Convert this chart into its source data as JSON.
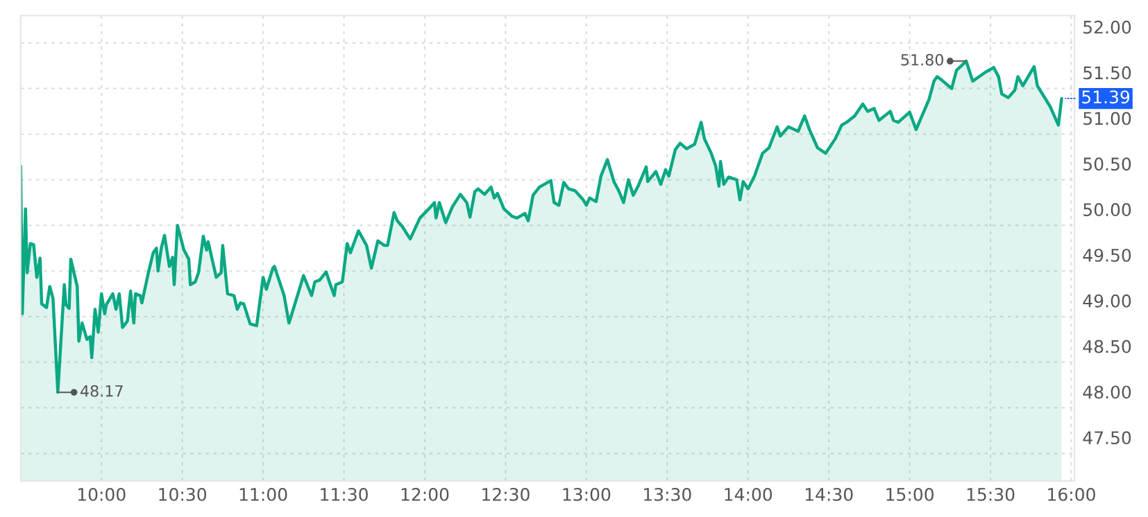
{
  "chart_data": {
    "type": "area",
    "x": [
      9.5,
      9.51,
      9.53,
      9.54,
      9.56,
      9.58,
      9.6,
      9.62,
      9.63,
      9.66,
      9.68,
      9.7,
      9.73,
      9.77,
      9.78,
      9.8,
      9.81,
      9.85,
      9.86,
      9.88,
      9.91,
      9.93,
      9.94,
      9.96,
      9.98,
      10.0,
      10.02,
      10.03,
      10.07,
      10.09,
      10.11,
      10.13,
      10.16,
      10.18,
      10.2,
      10.21,
      10.24,
      10.25,
      10.29,
      10.32,
      10.34,
      10.35,
      10.37,
      10.39,
      10.42,
      10.44,
      10.45,
      10.47,
      10.51,
      10.54,
      10.55,
      10.58,
      10.6,
      10.63,
      10.65,
      10.66,
      10.71,
      10.74,
      10.75,
      10.78,
      10.82,
      10.84,
      10.86,
      10.88,
      10.92,
      10.96,
      11.0,
      11.02,
      11.06,
      11.07,
      11.13,
      11.16,
      11.19,
      11.25,
      11.3,
      11.32,
      11.35,
      11.39,
      11.41,
      11.44,
      11.45,
      11.49,
      11.52,
      11.54,
      11.59,
      11.64,
      11.67,
      11.71,
      11.75,
      11.77,
      11.81,
      11.83,
      11.86,
      11.91,
      11.97,
      12.03,
      12.06,
      12.07,
      12.09,
      12.13,
      12.17,
      12.22,
      12.26,
      12.28,
      12.31,
      12.33,
      12.37,
      12.41,
      12.43,
      12.45,
      12.49,
      12.54,
      12.57,
      12.62,
      12.64,
      12.67,
      12.71,
      12.78,
      12.8,
      12.83,
      12.86,
      12.89,
      12.93,
      12.98,
      13.0,
      13.02,
      13.06,
      13.09,
      13.13,
      13.17,
      13.2,
      13.23,
      13.26,
      13.29,
      13.32,
      13.37,
      13.38,
      13.43,
      13.46,
      13.49,
      13.51,
      13.55,
      13.58,
      13.62,
      13.67,
      13.71,
      13.73,
      13.77,
      13.8,
      13.82,
      13.83,
      13.85,
      13.88,
      13.93,
      13.95,
      13.97,
      14.0,
      14.04,
      14.09,
      14.13,
      14.18,
      14.2,
      14.25,
      14.31,
      14.35,
      14.38,
      14.43,
      14.48,
      14.54,
      14.58,
      14.61,
      14.66,
      14.71,
      14.74,
      14.78,
      14.81,
      14.88,
      14.9,
      14.93,
      15.0,
      15.04,
      15.12,
      15.15,
      15.17,
      15.2,
      15.26,
      15.29,
      15.32,
      15.35,
      15.39,
      15.47,
      15.52,
      15.55,
      15.57,
      15.61,
      15.65,
      15.67,
      15.7,
      15.77,
      15.79,
      15.87,
      15.92,
      15.94
    ],
    "series": [
      {
        "color": "#0aa883",
        "values": [
          50.65,
          49.03,
          50.18,
          49.48,
          49.8,
          49.79,
          49.43,
          49.64,
          49.14,
          49.1,
          49.33,
          49.2,
          48.17,
          49.35,
          49.13,
          49.09,
          49.63,
          49.33,
          48.73,
          48.93,
          48.75,
          48.78,
          48.55,
          49.08,
          48.83,
          49.25,
          49.03,
          49.13,
          49.25,
          49.08,
          49.25,
          48.88,
          48.95,
          49.28,
          48.93,
          49.25,
          49.23,
          49.15,
          49.48,
          49.7,
          49.75,
          49.5,
          49.75,
          49.89,
          49.55,
          49.65,
          49.35,
          50.0,
          49.73,
          49.63,
          49.35,
          49.38,
          49.48,
          49.88,
          49.73,
          49.82,
          49.43,
          49.48,
          49.78,
          49.25,
          49.23,
          49.08,
          49.15,
          49.14,
          48.92,
          48.9,
          49.43,
          49.3,
          49.53,
          49.55,
          49.23,
          48.93,
          49.1,
          49.45,
          49.23,
          49.38,
          49.4,
          49.49,
          49.38,
          49.23,
          49.35,
          49.38,
          49.8,
          49.7,
          49.94,
          49.78,
          49.53,
          49.83,
          49.78,
          49.78,
          50.14,
          50.05,
          49.99,
          49.85,
          50.08,
          50.19,
          50.25,
          50.08,
          50.25,
          50.03,
          50.2,
          50.34,
          50.25,
          50.09,
          50.37,
          50.4,
          50.34,
          50.42,
          50.3,
          50.35,
          50.18,
          50.1,
          50.08,
          50.13,
          50.05,
          50.33,
          50.42,
          50.49,
          50.25,
          50.22,
          50.47,
          50.4,
          50.38,
          50.28,
          50.22,
          50.3,
          50.26,
          50.54,
          50.72,
          50.48,
          50.38,
          50.25,
          50.5,
          50.33,
          50.43,
          50.64,
          50.48,
          50.59,
          50.45,
          50.61,
          50.54,
          50.83,
          50.9,
          50.84,
          50.89,
          51.13,
          50.95,
          50.8,
          50.65,
          50.43,
          50.7,
          50.45,
          50.53,
          50.5,
          50.28,
          50.48,
          50.4,
          50.54,
          50.79,
          50.85,
          51.08,
          50.98,
          51.08,
          51.03,
          51.2,
          51.05,
          50.85,
          50.79,
          50.95,
          51.1,
          51.13,
          51.2,
          51.33,
          51.25,
          51.28,
          51.15,
          51.25,
          51.15,
          51.13,
          51.24,
          51.05,
          51.38,
          51.58,
          51.63,
          51.59,
          51.5,
          51.7,
          51.75,
          51.8,
          51.58,
          51.68,
          51.73,
          51.63,
          51.44,
          51.4,
          51.48,
          51.63,
          51.53,
          51.74,
          51.53,
          51.3,
          51.1,
          51.39
        ]
      }
    ],
    "xlim": [
      9.5,
      16.02
    ],
    "ylim": [
      47.2,
      52.3
    ],
    "xticks": [
      {
        "value": 10.0,
        "label": "10:00"
      },
      {
        "value": 10.5,
        "label": "10:30"
      },
      {
        "value": 11.0,
        "label": "11:00"
      },
      {
        "value": 11.5,
        "label": "11:30"
      },
      {
        "value": 12.0,
        "label": "12:00"
      },
      {
        "value": 12.5,
        "label": "12:30"
      },
      {
        "value": 13.0,
        "label": "13:00"
      },
      {
        "value": 13.5,
        "label": "13:30"
      },
      {
        "value": 14.0,
        "label": "14:00"
      },
      {
        "value": 14.5,
        "label": "14:30"
      },
      {
        "value": 15.0,
        "label": "15:00"
      },
      {
        "value": 15.5,
        "label": "15:30"
      },
      {
        "value": 16.0,
        "label": "16:00"
      }
    ],
    "yticks": [
      {
        "value": 47.5,
        "label": "47.50"
      },
      {
        "value": 48.0,
        "label": "48.00"
      },
      {
        "value": 48.5,
        "label": "48.50"
      },
      {
        "value": 49.0,
        "label": "49.00"
      },
      {
        "value": 49.5,
        "label": "49.50"
      },
      {
        "value": 50.0,
        "label": "50.00"
      },
      {
        "value": 50.5,
        "label": "50.50"
      },
      {
        "value": 51.0,
        "label": "51.00"
      },
      {
        "value": 51.5,
        "label": "51.50"
      },
      {
        "value": 52.0,
        "label": "52.00"
      }
    ],
    "annotations": [
      {
        "text": "48.17",
        "x": 9.73,
        "y": 48.17
      },
      {
        "text": "51.80",
        "x": 15.35,
        "y": 51.8
      },
      {
        "text": "51.39",
        "x": 15.94,
        "y": 51.39
      }
    ],
    "grid": true,
    "line_style": "solid"
  }
}
